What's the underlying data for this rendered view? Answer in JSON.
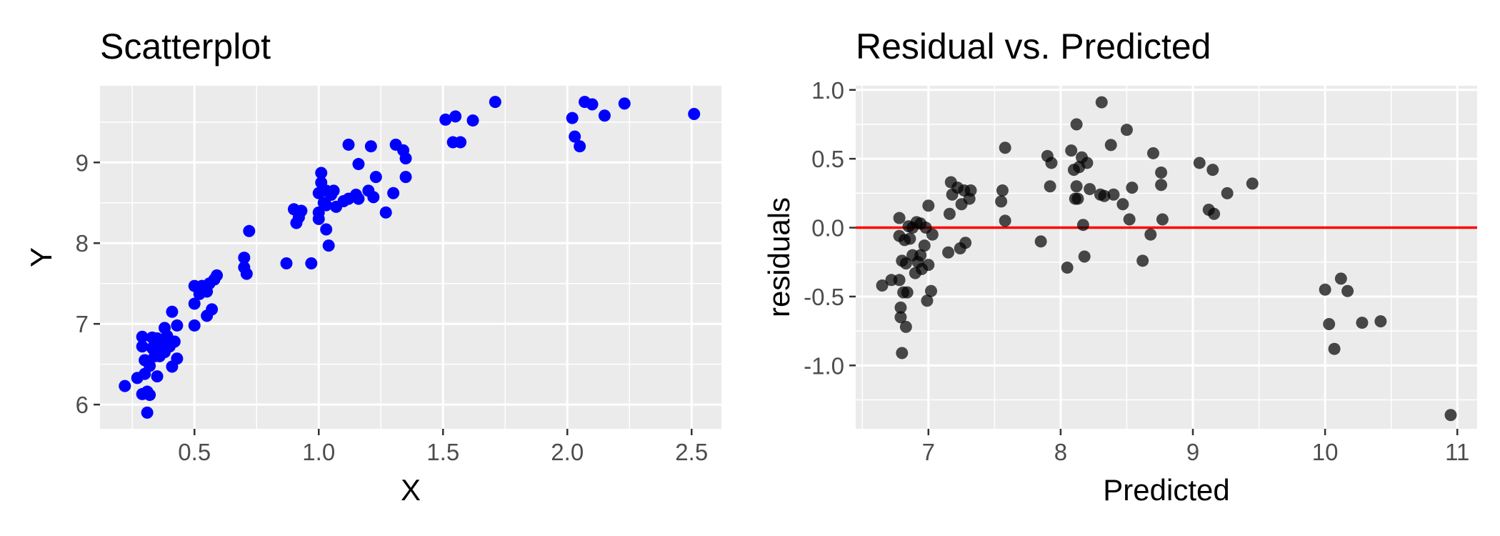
{
  "chart_data": [
    {
      "type": "scatter",
      "title": "Scatterplot",
      "xlabel": "X",
      "ylabel": "Y",
      "xlim": [
        0.12,
        2.62
      ],
      "ylim": [
        5.7,
        9.95
      ],
      "xticks": [
        0.5,
        1.0,
        1.5,
        2.0,
        2.5
      ],
      "xtick_labels": [
        "0.5",
        "1.0",
        "1.5",
        "2.0",
        "2.5"
      ],
      "yticks": [
        6,
        7,
        8,
        9
      ],
      "ytick_labels": [
        "6",
        "7",
        "8",
        "9"
      ],
      "grid": true,
      "point_color": "#0000ff",
      "points": [
        [
          0.22,
          6.23
        ],
        [
          0.27,
          6.33
        ],
        [
          0.29,
          6.13
        ],
        [
          0.3,
          6.38
        ],
        [
          0.3,
          6.55
        ],
        [
          0.29,
          6.72
        ],
        [
          0.29,
          6.84
        ],
        [
          0.31,
          5.9
        ],
        [
          0.31,
          6.16
        ],
        [
          0.32,
          6.12
        ],
        [
          0.32,
          6.48
        ],
        [
          0.33,
          6.7
        ],
        [
          0.33,
          6.83
        ],
        [
          0.34,
          6.6
        ],
        [
          0.35,
          6.35
        ],
        [
          0.35,
          6.82
        ],
        [
          0.36,
          6.6
        ],
        [
          0.37,
          6.72
        ],
        [
          0.38,
          6.65
        ],
        [
          0.38,
          6.95
        ],
        [
          0.39,
          6.85
        ],
        [
          0.4,
          6.72
        ],
        [
          0.41,
          7.15
        ],
        [
          0.41,
          6.47
        ],
        [
          0.42,
          6.78
        ],
        [
          0.43,
          6.57
        ],
        [
          0.43,
          6.98
        ],
        [
          0.5,
          6.98
        ],
        [
          0.5,
          7.25
        ],
        [
          0.5,
          7.47
        ],
        [
          0.52,
          7.37
        ],
        [
          0.53,
          7.47
        ],
        [
          0.55,
          7.1
        ],
        [
          0.55,
          7.4
        ],
        [
          0.56,
          7.5
        ],
        [
          0.57,
          7.18
        ],
        [
          0.58,
          7.55
        ],
        [
          0.59,
          7.6
        ],
        [
          0.7,
          7.7
        ],
        [
          0.7,
          7.82
        ],
        [
          0.71,
          7.62
        ],
        [
          0.72,
          8.15
        ],
        [
          0.87,
          7.75
        ],
        [
          0.9,
          8.42
        ],
        [
          0.91,
          8.25
        ],
        [
          0.92,
          8.32
        ],
        [
          0.93,
          8.4
        ],
        [
          0.97,
          7.75
        ],
        [
          1.0,
          8.3
        ],
        [
          1.0,
          8.38
        ],
        [
          1.0,
          8.62
        ],
        [
          1.01,
          8.75
        ],
        [
          1.01,
          8.87
        ],
        [
          1.02,
          8.5
        ],
        [
          1.03,
          8.17
        ],
        [
          1.03,
          8.47
        ],
        [
          1.03,
          8.65
        ],
        [
          1.04,
          7.97
        ],
        [
          1.05,
          8.6
        ],
        [
          1.06,
          8.65
        ],
        [
          1.07,
          8.45
        ],
        [
          1.1,
          8.52
        ],
        [
          1.12,
          8.55
        ],
        [
          1.12,
          9.22
        ],
        [
          1.15,
          8.6
        ],
        [
          1.16,
          8.98
        ],
        [
          1.16,
          8.55
        ],
        [
          1.2,
          8.65
        ],
        [
          1.21,
          9.2
        ],
        [
          1.22,
          8.57
        ],
        [
          1.23,
          8.82
        ],
        [
          1.27,
          8.38
        ],
        [
          1.3,
          8.62
        ],
        [
          1.31,
          9.22
        ],
        [
          1.34,
          9.15
        ],
        [
          1.35,
          9.05
        ],
        [
          1.35,
          8.82
        ],
        [
          1.51,
          9.53
        ],
        [
          1.54,
          9.25
        ],
        [
          1.55,
          9.57
        ],
        [
          1.57,
          9.25
        ],
        [
          1.62,
          9.52
        ],
        [
          1.71,
          9.75
        ],
        [
          2.02,
          9.55
        ],
        [
          2.03,
          9.32
        ],
        [
          2.05,
          9.2
        ],
        [
          2.07,
          9.75
        ],
        [
          2.1,
          9.72
        ],
        [
          2.15,
          9.58
        ],
        [
          2.23,
          9.73
        ],
        [
          2.51,
          9.6
        ]
      ]
    },
    {
      "type": "scatter",
      "title": "Residual vs. Predicted",
      "xlabel": "Predicted",
      "ylabel": "residuals",
      "xlim": [
        6.45,
        11.15
      ],
      "ylim": [
        -1.46,
        1.03
      ],
      "xticks": [
        7,
        8,
        9,
        10,
        11
      ],
      "xtick_labels": [
        "7",
        "8",
        "9",
        "10",
        "11"
      ],
      "yticks": [
        1.0,
        0.5,
        0.0,
        -0.5,
        -1.0
      ],
      "ytick_labels": [
        "1.0",
        "0.5",
        "0.0",
        "-0.5",
        "-1.0"
      ],
      "grid": true,
      "point_color": "#000000",
      "reference_line": {
        "y": 0,
        "color": "#ff0000"
      },
      "points": [
        [
          6.65,
          -0.42
        ],
        [
          6.72,
          -0.38
        ],
        [
          6.78,
          -0.38
        ],
        [
          6.78,
          0.07
        ],
        [
          6.78,
          -0.06
        ],
        [
          6.79,
          -0.58
        ],
        [
          6.79,
          -0.65
        ],
        [
          6.8,
          -0.91
        ],
        [
          6.8,
          -0.24
        ],
        [
          6.81,
          -0.47
        ],
        [
          6.82,
          -0.09
        ],
        [
          6.83,
          -0.72
        ],
        [
          6.83,
          -0.26
        ],
        [
          6.84,
          -0.47
        ],
        [
          6.85,
          0.01
        ],
        [
          6.86,
          -0.08
        ],
        [
          6.88,
          0.0
        ],
        [
          6.88,
          -0.2
        ],
        [
          6.9,
          -0.33
        ],
        [
          6.91,
          0.04
        ],
        [
          6.92,
          -0.25
        ],
        [
          6.94,
          0.03
        ],
        [
          6.94,
          -0.2
        ],
        [
          6.95,
          -0.3
        ],
        [
          6.97,
          -0.13
        ],
        [
          6.98,
          0.0
        ],
        [
          6.99,
          -0.53
        ],
        [
          7.0,
          0.16
        ],
        [
          7.0,
          -0.27
        ],
        [
          7.02,
          -0.46
        ],
        [
          7.03,
          -0.05
        ],
        [
          7.15,
          -0.18
        ],
        [
          7.16,
          0.1
        ],
        [
          7.17,
          0.33
        ],
        [
          7.18,
          0.24
        ],
        [
          7.22,
          0.29
        ],
        [
          7.24,
          -0.15
        ],
        [
          7.25,
          0.17
        ],
        [
          7.27,
          0.27
        ],
        [
          7.28,
          -0.11
        ],
        [
          7.31,
          0.21
        ],
        [
          7.32,
          0.27
        ],
        [
          7.55,
          0.19
        ],
        [
          7.56,
          0.27
        ],
        [
          7.58,
          0.58
        ],
        [
          7.58,
          0.05
        ],
        [
          7.85,
          -0.1
        ],
        [
          7.9,
          0.52
        ],
        [
          7.92,
          0.3
        ],
        [
          7.93,
          0.47
        ],
        [
          8.05,
          -0.29
        ],
        [
          8.08,
          0.56
        ],
        [
          8.1,
          0.42
        ],
        [
          8.11,
          0.21
        ],
        [
          8.12,
          0.3
        ],
        [
          8.12,
          0.75
        ],
        [
          8.13,
          0.21
        ],
        [
          8.14,
          0.44
        ],
        [
          8.16,
          0.51
        ],
        [
          8.17,
          0.02
        ],
        [
          8.18,
          -0.21
        ],
        [
          8.2,
          0.47
        ],
        [
          8.22,
          0.28
        ],
        [
          8.3,
          0.24
        ],
        [
          8.31,
          0.91
        ],
        [
          8.33,
          0.23
        ],
        [
          8.38,
          0.6
        ],
        [
          8.4,
          0.24
        ],
        [
          8.47,
          0.17
        ],
        [
          8.5,
          0.71
        ],
        [
          8.52,
          0.06
        ],
        [
          8.54,
          0.29
        ],
        [
          8.62,
          -0.24
        ],
        [
          8.68,
          -0.05
        ],
        [
          8.7,
          0.54
        ],
        [
          8.76,
          0.4
        ],
        [
          8.76,
          0.31
        ],
        [
          8.77,
          0.06
        ],
        [
          9.05,
          0.47
        ],
        [
          9.12,
          0.13
        ],
        [
          9.15,
          0.42
        ],
        [
          9.16,
          0.1
        ],
        [
          9.26,
          0.25
        ],
        [
          9.45,
          0.32
        ],
        [
          10.0,
          -0.45
        ],
        [
          10.03,
          -0.7
        ],
        [
          10.07,
          -0.88
        ],
        [
          10.12,
          -0.37
        ],
        [
          10.17,
          -0.46
        ],
        [
          10.28,
          -0.69
        ],
        [
          10.42,
          -0.68
        ],
        [
          10.95,
          -1.36
        ]
      ]
    }
  ]
}
